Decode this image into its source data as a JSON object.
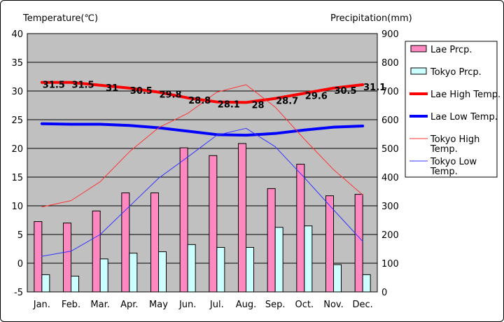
{
  "chart_data": {
    "type": "bar",
    "title": "",
    "left_axis_title": "Temperature(℃)",
    "right_axis_title": "Precipitation(mm)",
    "categories": [
      "Jan.",
      "Feb.",
      "Mar.",
      "Apr.",
      "May",
      "Jun.",
      "Jul.",
      "Aug.",
      "Sep.",
      "Oct.",
      "Nov.",
      "Dec."
    ],
    "left_ylim": [
      -5,
      40
    ],
    "left_ticks": [
      "40",
      "35",
      "30",
      "25",
      "20",
      "15",
      "10",
      "5",
      "0",
      "-5"
    ],
    "right_ylim": [
      0,
      900
    ],
    "right_ticks": [
      "900",
      "800",
      "700",
      "600",
      "500",
      "400",
      "300",
      "200",
      "100",
      "0"
    ],
    "grid": true,
    "legend_position": "right",
    "bar_series": [
      {
        "name": "Lae Prcp.",
        "axis": "right",
        "color": "#FF88C0",
        "values": [
          245,
          240,
          282,
          345,
          345,
          502,
          475,
          517,
          360,
          445,
          335,
          340
        ]
      },
      {
        "name": "Tokyo Prcp.",
        "axis": "right",
        "color": "#CCFFFF",
        "values": [
          60,
          55,
          115,
          135,
          140,
          165,
          155,
          155,
          225,
          230,
          95,
          60
        ]
      }
    ],
    "line_series": [
      {
        "name": "Lae High Temp.",
        "axis": "left",
        "color": "#FF0000",
        "width": 4,
        "values": [
          31.5,
          31.5,
          31,
          30.5,
          29.8,
          28.8,
          28.1,
          28,
          28.7,
          29.6,
          30.5,
          31.1
        ],
        "labels": [
          "31.5",
          "31.5",
          "31",
          "30.5",
          "29.8",
          "28.8",
          "28.1",
          "28",
          "28.7",
          "29.6",
          "30.5",
          "31.1"
        ]
      },
      {
        "name": "Lae Low Temp.",
        "axis": "left",
        "color": "#0000FF",
        "width": 4,
        "values": [
          24.3,
          24.2,
          24.2,
          24.0,
          23.6,
          23.0,
          22.4,
          22.3,
          22.6,
          23.2,
          23.7,
          23.9
        ]
      },
      {
        "name": "Tokyo High Temp.",
        "axis": "left",
        "color": "#FF3333",
        "width": 1,
        "values": [
          9.8,
          10.9,
          14.2,
          19.4,
          23.6,
          26.1,
          29.8,
          31.1,
          27.2,
          21.6,
          16.3,
          11.9
        ]
      },
      {
        "name": "Tokyo Low Temp.",
        "axis": "left",
        "color": "#3333FF",
        "width": 1,
        "values": [
          1.2,
          2.1,
          5.0,
          9.9,
          14.8,
          18.5,
          22.3,
          23.5,
          20.3,
          14.9,
          9.3,
          3.8
        ]
      }
    ]
  },
  "legend_rows": [
    {
      "kind": "bar",
      "color": "#FF88C0",
      "lines": [
        "Lae Prcp."
      ]
    },
    {
      "kind": "bar",
      "color": "#CCFFFF",
      "lines": [
        "Tokyo Prcp."
      ]
    },
    {
      "kind": "line",
      "color": "#FF0000",
      "width": 4,
      "lines": [
        "Lae High Temp."
      ]
    },
    {
      "kind": "line",
      "color": "#0000FF",
      "width": 4,
      "lines": [
        "Lae Low Temp."
      ]
    },
    {
      "kind": "line",
      "color": "#FF3333",
      "width": 1,
      "lines": [
        "Tokyo High",
        "Temp."
      ]
    },
    {
      "kind": "line",
      "color": "#3333FF",
      "width": 1,
      "lines": [
        "Tokyo Low",
        "Temp."
      ]
    }
  ]
}
